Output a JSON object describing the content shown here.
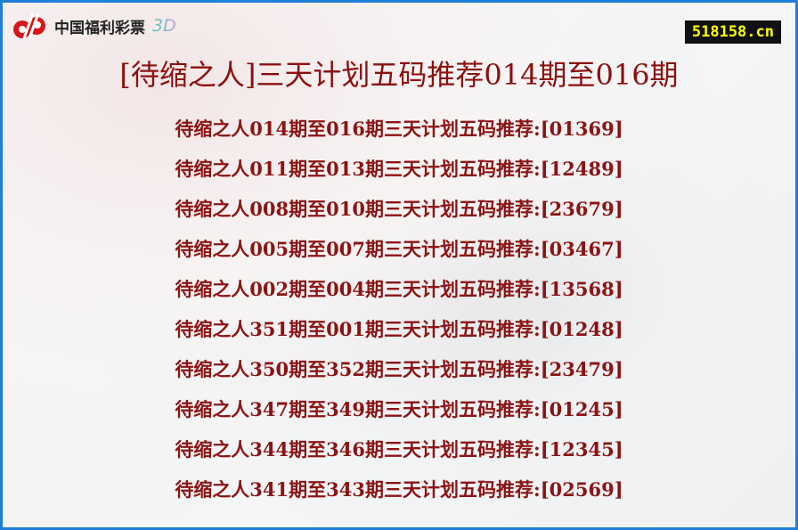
{
  "logo": {
    "text": "中国福利彩票",
    "suffix": "3D",
    "brand_color": "#d8151b"
  },
  "badge": "518158.cn",
  "title": "[待缩之人]三天计划五码推荐014期至016期",
  "items": [
    "待缩之人014期至016期三天计划五码推荐:[01369]",
    "待缩之人011期至013期三天计划五码推荐:[12489]",
    "待缩之人008期至010期三天计划五码推荐:[23679]",
    "待缩之人005期至007期三天计划五码推荐:[03467]",
    "待缩之人002期至004期三天计划五码推荐:[13568]",
    "待缩之人351期至001期三天计划五码推荐:[01248]",
    "待缩之人350期至352期三天计划五码推荐:[23479]",
    "待缩之人347期至349期三天计划五码推荐:[01245]",
    "待缩之人344期至346期三天计划五码推荐:[12345]",
    "待缩之人341期至343期三天计划五码推荐:[02569]"
  ]
}
